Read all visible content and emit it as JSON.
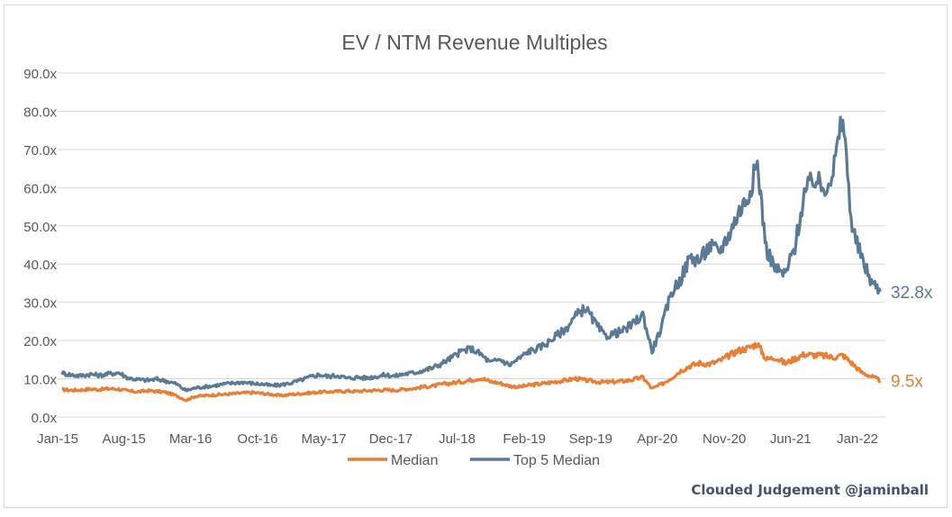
{
  "chart_data": {
    "type": "line",
    "title": "EV / NTM Revenue Multiples",
    "xlabel": "",
    "ylabel": "",
    "ylim": [
      0,
      90
    ],
    "y_ticks": [
      "0.0x",
      "10.0x",
      "20.0x",
      "30.0x",
      "40.0x",
      "50.0x",
      "60.0x",
      "70.0x",
      "80.0x",
      "90.0x"
    ],
    "x_ticks": [
      "Jan-15",
      "Aug-15",
      "Mar-16",
      "Oct-16",
      "May-17",
      "Dec-17",
      "Jul-18",
      "Feb-19",
      "Sep-19",
      "Apr-20",
      "Nov-20",
      "Jun-21",
      "Jan-22"
    ],
    "legend_position": "bottom",
    "grid": "horizontal",
    "watermark": "Clouded Judgement @jaminball",
    "series": [
      {
        "name": "Median",
        "color": "#ed7d31",
        "end_label": "9.5x",
        "points": [
          [
            "2015-01",
            7.2
          ],
          [
            "2015-02",
            7.0
          ],
          [
            "2015-03",
            7.1
          ],
          [
            "2015-04",
            7.3
          ],
          [
            "2015-05",
            7.2
          ],
          [
            "2015-06",
            7.4
          ],
          [
            "2015-07",
            7.3
          ],
          [
            "2015-08",
            6.8
          ],
          [
            "2015-09",
            6.6
          ],
          [
            "2015-10",
            6.9
          ],
          [
            "2015-11",
            6.7
          ],
          [
            "2015-12",
            6.4
          ],
          [
            "2016-01",
            5.6
          ],
          [
            "2016-02",
            4.4
          ],
          [
            "2016-03",
            5.4
          ],
          [
            "2016-04",
            5.6
          ],
          [
            "2016-05",
            5.8
          ],
          [
            "2016-06",
            5.9
          ],
          [
            "2016-07",
            6.1
          ],
          [
            "2016-08",
            6.3
          ],
          [
            "2016-09",
            6.4
          ],
          [
            "2016-10",
            6.2
          ],
          [
            "2016-11",
            5.9
          ],
          [
            "2016-12",
            5.6
          ],
          [
            "2017-01",
            5.9
          ],
          [
            "2017-02",
            6.1
          ],
          [
            "2017-03",
            6.3
          ],
          [
            "2017-04",
            6.5
          ],
          [
            "2017-05",
            6.6
          ],
          [
            "2017-06",
            6.7
          ],
          [
            "2017-07",
            6.8
          ],
          [
            "2017-08",
            6.7
          ],
          [
            "2017-09",
            6.9
          ],
          [
            "2017-10",
            7.0
          ],
          [
            "2017-11",
            7.1
          ],
          [
            "2017-12",
            7.0
          ],
          [
            "2018-01",
            7.3
          ],
          [
            "2018-02",
            7.5
          ],
          [
            "2018-03",
            7.9
          ],
          [
            "2018-04",
            8.1
          ],
          [
            "2018-05",
            8.6
          ],
          [
            "2018-06",
            8.9
          ],
          [
            "2018-07",
            9.2
          ],
          [
            "2018-08",
            9.7
          ],
          [
            "2018-09",
            10.2
          ],
          [
            "2018-10",
            9.3
          ],
          [
            "2018-11",
            8.9
          ],
          [
            "2018-12",
            8.1
          ],
          [
            "2019-01",
            7.9
          ],
          [
            "2019-02",
            8.3
          ],
          [
            "2019-03",
            8.6
          ],
          [
            "2019-04",
            8.9
          ],
          [
            "2019-05",
            9.3
          ],
          [
            "2019-06",
            9.6
          ],
          [
            "2019-07",
            10.1
          ],
          [
            "2019-08",
            9.6
          ],
          [
            "2019-09",
            9.3
          ],
          [
            "2019-10",
            9.1
          ],
          [
            "2019-11",
            9.2
          ],
          [
            "2019-12",
            9.4
          ],
          [
            "2020-01",
            9.8
          ],
          [
            "2020-02",
            10.4
          ],
          [
            "2020-03",
            7.4
          ],
          [
            "2020-04",
            8.6
          ],
          [
            "2020-05",
            10.2
          ],
          [
            "2020-06",
            12.1
          ],
          [
            "2020-07",
            13.4
          ],
          [
            "2020-08",
            14.1
          ],
          [
            "2020-09",
            13.9
          ],
          [
            "2020-10",
            14.6
          ],
          [
            "2020-11",
            16.0
          ],
          [
            "2020-12",
            17.4
          ],
          [
            "2021-01",
            18.0
          ],
          [
            "2021-02",
            19.2
          ],
          [
            "2021-03",
            15.1
          ],
          [
            "2021-04",
            15.6
          ],
          [
            "2021-05",
            14.0
          ],
          [
            "2021-06",
            15.3
          ],
          [
            "2021-07",
            16.4
          ],
          [
            "2021-08",
            16.2
          ],
          [
            "2021-09",
            16.0
          ],
          [
            "2021-10",
            15.6
          ],
          [
            "2021-11",
            16.2
          ],
          [
            "2021-12",
            14.0
          ],
          [
            "2022-01",
            11.6
          ],
          [
            "2022-02",
            10.6
          ],
          [
            "2022-03",
            9.5
          ]
        ]
      },
      {
        "name": "Top 5 Median",
        "color": "#5b7a96",
        "end_label": "32.8x",
        "points": [
          [
            "2015-01",
            11.5
          ],
          [
            "2015-02",
            11.0
          ],
          [
            "2015-03",
            10.8
          ],
          [
            "2015-04",
            11.2
          ],
          [
            "2015-05",
            10.9
          ],
          [
            "2015-06",
            11.3
          ],
          [
            "2015-07",
            11.6
          ],
          [
            "2015-08",
            10.2
          ],
          [
            "2015-09",
            9.8
          ],
          [
            "2015-10",
            9.6
          ],
          [
            "2015-11",
            9.9
          ],
          [
            "2015-12",
            9.4
          ],
          [
            "2016-01",
            8.7
          ],
          [
            "2016-02",
            6.9
          ],
          [
            "2016-03",
            7.6
          ],
          [
            "2016-04",
            7.9
          ],
          [
            "2016-05",
            8.2
          ],
          [
            "2016-06",
            8.6
          ],
          [
            "2016-07",
            8.9
          ],
          [
            "2016-08",
            9.1
          ],
          [
            "2016-09",
            8.8
          ],
          [
            "2016-10",
            8.6
          ],
          [
            "2016-11",
            8.2
          ],
          [
            "2016-12",
            8.4
          ],
          [
            "2017-01",
            8.9
          ],
          [
            "2017-02",
            9.6
          ],
          [
            "2017-03",
            10.4
          ],
          [
            "2017-04",
            11.1
          ],
          [
            "2017-05",
            10.6
          ],
          [
            "2017-06",
            10.9
          ],
          [
            "2017-07",
            10.1
          ],
          [
            "2017-08",
            10.4
          ],
          [
            "2017-09",
            10.2
          ],
          [
            "2017-10",
            10.6
          ],
          [
            "2017-11",
            11.0
          ],
          [
            "2017-12",
            10.7
          ],
          [
            "2018-01",
            11.3
          ],
          [
            "2018-02",
            11.6
          ],
          [
            "2018-03",
            12.2
          ],
          [
            "2018-04",
            12.9
          ],
          [
            "2018-05",
            14.1
          ],
          [
            "2018-06",
            15.6
          ],
          [
            "2018-07",
            17.2
          ],
          [
            "2018-08",
            17.9
          ],
          [
            "2018-09",
            16.4
          ],
          [
            "2018-10",
            14.2
          ],
          [
            "2018-11",
            15.1
          ],
          [
            "2018-12",
            13.6
          ],
          [
            "2019-01",
            15.3
          ],
          [
            "2019-02",
            17.2
          ],
          [
            "2019-03",
            17.9
          ],
          [
            "2019-04",
            19.4
          ],
          [
            "2019-05",
            21.3
          ],
          [
            "2019-06",
            23.2
          ],
          [
            "2019-07",
            26.4
          ],
          [
            "2019-08",
            28.6
          ],
          [
            "2019-09",
            24.6
          ],
          [
            "2019-10",
            21.2
          ],
          [
            "2019-11",
            21.8
          ],
          [
            "2019-12",
            22.6
          ],
          [
            "2020-01",
            24.4
          ],
          [
            "2020-02",
            26.8
          ],
          [
            "2020-03",
            17.2
          ],
          [
            "2020-04",
            23.6
          ],
          [
            "2020-05",
            32.4
          ],
          [
            "2020-06",
            36.2
          ],
          [
            "2020-07",
            41.8
          ],
          [
            "2020-08",
            41.1
          ],
          [
            "2020-09",
            44.8
          ],
          [
            "2020-10",
            43.2
          ],
          [
            "2020-11",
            47.6
          ],
          [
            "2020-12",
            53.2
          ],
          [
            "2021-01",
            57.6
          ],
          [
            "2021-02",
            66.2
          ],
          [
            "2021-03",
            44.1
          ],
          [
            "2021-04",
            38.6
          ],
          [
            "2021-05",
            37.2
          ],
          [
            "2021-06",
            44.6
          ],
          [
            "2021-07",
            58.3
          ],
          [
            "2021-08",
            62.4
          ],
          [
            "2021-09",
            59.6
          ],
          [
            "2021-10",
            64.2
          ],
          [
            "2021-11",
            78.6
          ],
          [
            "2021-12",
            49.2
          ],
          [
            "2022-01",
            41.3
          ],
          [
            "2022-02",
            35.4
          ],
          [
            "2022-03",
            32.8
          ]
        ]
      }
    ]
  }
}
